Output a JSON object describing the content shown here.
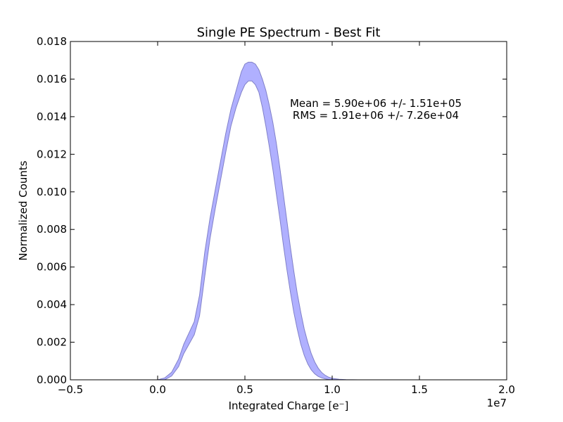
{
  "chart_data": {
    "type": "area",
    "title": "Single PE Spectrum - Best Fit",
    "xlabel": "Integrated Charge [e⁻]",
    "ylabel": "Normalized Counts",
    "x_offset_label": "1e7",
    "xlim": [
      -0.5,
      2.0
    ],
    "ylim": [
      0.0,
      0.018
    ],
    "x_ticks": [
      -0.5,
      0.0,
      0.5,
      1.0,
      1.5,
      2.0
    ],
    "x_tick_labels": [
      "−0.5",
      "0.0",
      "0.5",
      "1.0",
      "1.5",
      "2.0"
    ],
    "y_ticks": [
      0.0,
      0.002,
      0.004,
      0.006,
      0.008,
      0.01,
      0.012,
      0.014,
      0.016,
      0.018
    ],
    "y_tick_labels": [
      "0.000",
      "0.002",
      "0.004",
      "0.006",
      "0.008",
      "0.010",
      "0.012",
      "0.014",
      "0.016",
      "0.018"
    ],
    "grid": false,
    "fill_color": "#b0b0ff",
    "edge_color": "#8080c8",
    "annotations": [
      "Mean = 5.90e+06 +/- 1.51e+05",
      "RMS = 1.91e+06 +/- 7.26e+04"
    ],
    "series": [
      {
        "kind": "band",
        "x": [
          0.0,
          0.04,
          0.08,
          0.12,
          0.15,
          0.18,
          0.21,
          0.24,
          0.27,
          0.3,
          0.33,
          0.36,
          0.39,
          0.42,
          0.45,
          0.48,
          0.5,
          0.52,
          0.54,
          0.56,
          0.58,
          0.6,
          0.62,
          0.64,
          0.66,
          0.68,
          0.7,
          0.72,
          0.74,
          0.76,
          0.78,
          0.8,
          0.82,
          0.84,
          0.86,
          0.88,
          0.9,
          0.92,
          0.94,
          0.96,
          0.98,
          1.0,
          1.04,
          1.08,
          1.12,
          1.16,
          1.2,
          1.25,
          1.3,
          1.4,
          2.0
        ],
        "upper": [
          0.0,
          0.0001,
          0.0004,
          0.0011,
          0.0019,
          0.0025,
          0.0031,
          0.0045,
          0.0068,
          0.0086,
          0.0101,
          0.0116,
          0.0131,
          0.0144,
          0.0154,
          0.0164,
          0.0168,
          0.0169,
          0.0169,
          0.0168,
          0.0165,
          0.016,
          0.0154,
          0.0146,
          0.0137,
          0.0126,
          0.0113,
          0.0099,
          0.0085,
          0.0071,
          0.0058,
          0.0046,
          0.0036,
          0.0027,
          0.002,
          0.0014,
          0.00095,
          0.00062,
          0.00039,
          0.00024,
          0.00014,
          8e-05,
          3e-05,
          1e-05,
          3e-06,
          1e-06,
          0.0,
          0.0,
          0.0,
          0.0,
          0.0
        ],
        "lower": [
          0.0,
          0.0,
          0.0002,
          0.0007,
          0.0014,
          0.0019,
          0.0024,
          0.0034,
          0.0055,
          0.0075,
          0.0091,
          0.0106,
          0.0121,
          0.0135,
          0.0145,
          0.0153,
          0.0157,
          0.0159,
          0.0159,
          0.0157,
          0.0153,
          0.0145,
          0.0135,
          0.0124,
          0.0112,
          0.0099,
          0.0086,
          0.0072,
          0.0059,
          0.0047,
          0.0036,
          0.0027,
          0.0019,
          0.0013,
          0.00085,
          0.00053,
          0.00032,
          0.00018,
          0.0001,
          5e-05,
          2e-05,
          1e-05,
          0.0,
          0.0,
          0.0,
          0.0,
          0.0,
          0.0,
          0.0,
          0.0,
          0.0
        ]
      }
    ]
  }
}
